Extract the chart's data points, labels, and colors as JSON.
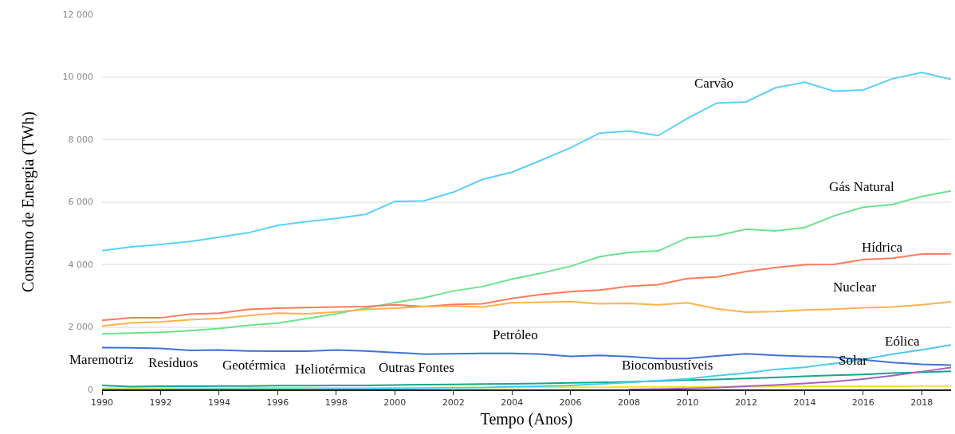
{
  "chart_data": {
    "type": "line",
    "xlabel": "Tempo (Anos)",
    "ylabel": "Consumo de Energia (TWh)",
    "x": [
      1990,
      1991,
      1992,
      1993,
      1994,
      1995,
      1996,
      1997,
      1998,
      1999,
      2000,
      2001,
      2002,
      2003,
      2004,
      2005,
      2006,
      2007,
      2008,
      2009,
      2010,
      2011,
      2012,
      2013,
      2014,
      2015,
      2016,
      2017,
      2018,
      2019
    ],
    "series": [
      {
        "color": "#f5e02e",
        "values": [
          40,
          40,
          40,
          40,
          40,
          50,
          50,
          50,
          50,
          50,
          50,
          60,
          60,
          60,
          60,
          70,
          70,
          70,
          80,
          80,
          80,
          90,
          90,
          90,
          100,
          100,
          100,
          100,
          110,
          110
        ]
      },
      {
        "color": "#17a58c",
        "values": [
          130,
          90,
          100,
          100,
          110,
          110,
          120,
          120,
          130,
          130,
          140,
          150,
          160,
          170,
          180,
          190,
          210,
          220,
          240,
          270,
          300,
          320,
          350,
          380,
          420,
          450,
          480,
          520,
          550,
          580
        ]
      },
      {
        "color": "#4cc9f0",
        "values": [
          0,
          0,
          0,
          10,
          10,
          10,
          10,
          10,
          20,
          20,
          30,
          40,
          50,
          60,
          90,
          100,
          130,
          170,
          220,
          280,
          340,
          440,
          520,
          640,
          710,
          830,
          960,
          1130,
          1270,
          1420
        ]
      },
      {
        "color": "#a561c2",
        "values": [
          null,
          null,
          null,
          null,
          null,
          null,
          null,
          null,
          null,
          null,
          null,
          null,
          null,
          null,
          null,
          null,
          null,
          null,
          0,
          10,
          30,
          60,
          100,
          140,
          190,
          250,
          330,
          440,
          570,
          700
        ]
      },
      {
        "color": "#5bd0f8",
        "values": [
          4440,
          4560,
          4640,
          4730,
          4870,
          5010,
          5250,
          5370,
          5470,
          5600,
          6010,
          6030,
          6310,
          6720,
          6950,
          7330,
          7730,
          8200,
          8270,
          8120,
          8670,
          9160,
          9200,
          9650,
          9830,
          9540,
          9580,
          9940,
          10140,
          9920
        ]
      },
      {
        "color": "#6be38a",
        "values": [
          1780,
          1800,
          1830,
          1880,
          1950,
          2050,
          2120,
          2270,
          2420,
          2600,
          2780,
          2930,
          3150,
          3290,
          3530,
          3720,
          3940,
          4250,
          4380,
          4430,
          4850,
          4920,
          5130,
          5070,
          5180,
          5550,
          5830,
          5920,
          6170,
          6350
        ]
      },
      {
        "color": "#ff7a5a",
        "values": [
          2210,
          2290,
          2290,
          2410,
          2440,
          2560,
          2600,
          2620,
          2640,
          2650,
          2710,
          2650,
          2720,
          2740,
          2910,
          3040,
          3130,
          3180,
          3300,
          3350,
          3550,
          3600,
          3770,
          3900,
          3990,
          4000,
          4150,
          4200,
          4330,
          4340
        ]
      },
      {
        "color": "#ffb14e",
        "values": [
          2030,
          2130,
          2160,
          2230,
          2270,
          2360,
          2440,
          2420,
          2480,
          2560,
          2600,
          2650,
          2670,
          2640,
          2770,
          2790,
          2810,
          2740,
          2750,
          2710,
          2770,
          2580,
          2470,
          2490,
          2540,
          2570,
          2610,
          2640,
          2710,
          2800
        ]
      },
      {
        "color": "#3f72d6",
        "values": [
          1340,
          1330,
          1310,
          1250,
          1260,
          1230,
          1220,
          1220,
          1260,
          1230,
          1180,
          1130,
          1140,
          1150,
          1150,
          1130,
          1060,
          1090,
          1050,
          990,
          990,
          1070,
          1140,
          1090,
          1060,
          1030,
          950,
          860,
          800,
          780
        ]
      }
    ],
    "xlim": [
      1990,
      2019
    ],
    "xticks": [
      1990,
      1992,
      1994,
      1996,
      1998,
      2000,
      2002,
      2004,
      2006,
      2008,
      2010,
      2012,
      2014,
      2016,
      2018
    ],
    "ylim": [
      0,
      12000
    ],
    "yticks": [
      0,
      {
        "value": 2000,
        "label": "2 000"
      },
      {
        "value": 4000,
        "label": "4 000"
      },
      {
        "value": 6000,
        "label": "6 000"
      },
      {
        "value": 8000,
        "label": "8 000"
      },
      {
        "value": 10000,
        "label": "10 000"
      },
      {
        "value": 12000,
        "label": "12 000"
      }
    ],
    "grid": "y",
    "marker": "none",
    "line_style": "solid",
    "annotations": [
      "Carvão",
      "Gás Natural",
      "Hídrica",
      "Nuclear",
      "Petróleo",
      "Eólica",
      "Solar",
      "Biocombustíveis",
      "Maremotriz",
      "Resíduos",
      "Geotérmica",
      "Heliotérmica",
      "Outras Fontes"
    ]
  }
}
